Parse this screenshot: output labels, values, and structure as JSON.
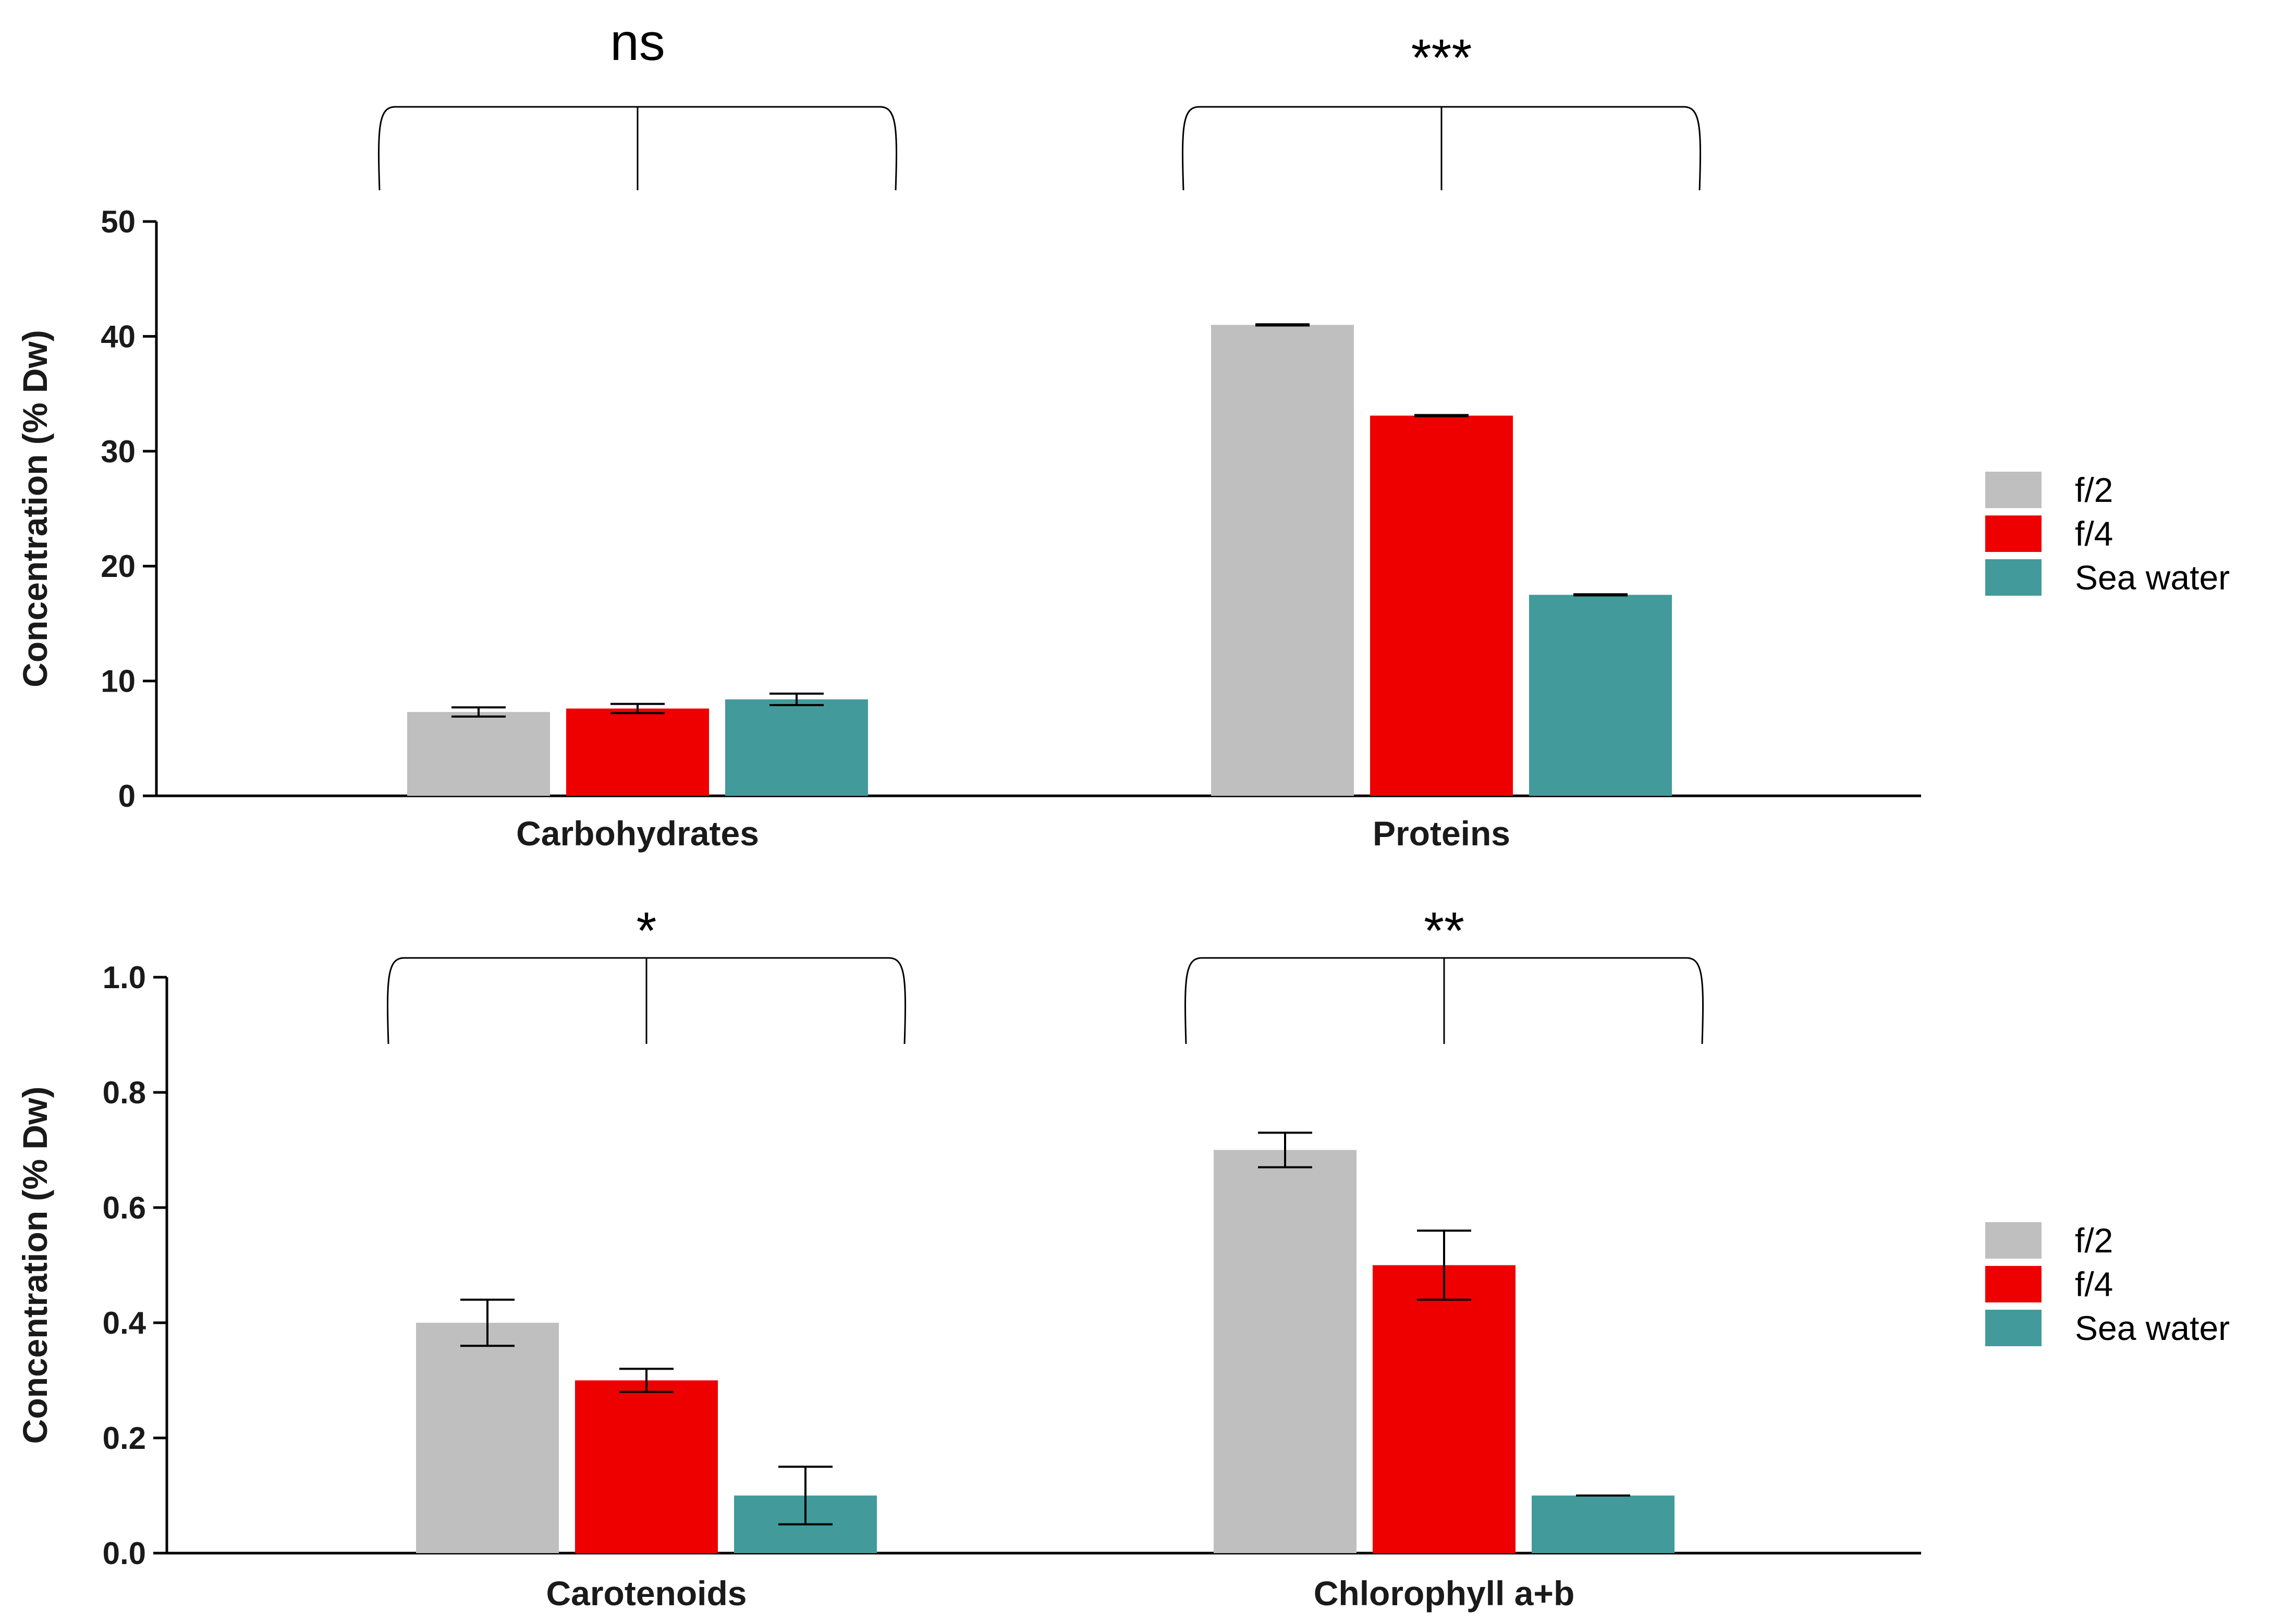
{
  "chart_data": [
    {
      "type": "bar",
      "categories": [
        "Carbohydrates",
        "Proteins"
      ],
      "series": [
        {
          "name": "f/2",
          "color": "#bfbfbf",
          "values": [
            7.3,
            41.0
          ],
          "errors": [
            0.4,
            0.05
          ]
        },
        {
          "name": "f/4",
          "color": "#ee0000",
          "values": [
            7.6,
            33.1
          ],
          "errors": [
            0.4,
            0.05
          ]
        },
        {
          "name": "Sea water",
          "color": "#439a9b",
          "values": [
            8.4,
            17.5
          ],
          "errors": [
            0.5,
            0.05
          ]
        }
      ],
      "ylabel": "Concentration  (% Dw)",
      "ylim": [
        0,
        50
      ],
      "yticks": [
        "0",
        "10",
        "20",
        "30",
        "40",
        "50"
      ],
      "significance": [
        "ns",
        "***"
      ],
      "legend": "right"
    },
    {
      "type": "bar",
      "categories": [
        "Carotenoids",
        "Chlorophyll a+b"
      ],
      "series": [
        {
          "name": "f/2",
          "color": "#bfbfbf",
          "values": [
            0.4,
            0.7
          ],
          "errors": [
            0.04,
            0.03
          ]
        },
        {
          "name": "f/4",
          "color": "#ee0000",
          "values": [
            0.3,
            0.5
          ],
          "errors": [
            0.02,
            0.06
          ]
        },
        {
          "name": "Sea water",
          "color": "#439a9b",
          "values": [
            0.1,
            0.1
          ],
          "errors": [
            0.05,
            0.0
          ]
        }
      ],
      "ylabel": "Concentration (% Dw)",
      "ylim": [
        0,
        1.0
      ],
      "yticks": [
        "0.0",
        "0.2",
        "0.4",
        "0.6",
        "0.8",
        "1.0"
      ],
      "significance": [
        "*",
        "**"
      ],
      "legend": "right"
    }
  ]
}
